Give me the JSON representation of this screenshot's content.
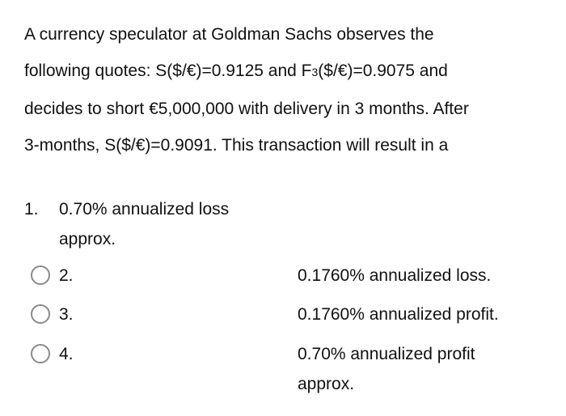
{
  "question": {
    "line1": "A currency speculator at Goldman Sachs observes the",
    "line2_a": "following quotes: S($/€)=0.9125 and F",
    "line2_sub": "3",
    "line2_b": "($/€)=0.9075 and",
    "line3": "decides to short €5,000,000 with delivery in 3 months. After",
    "line4": "3-months, S($/€)=0.9091. This transaction will result in a"
  },
  "options": [
    {
      "number": "1.",
      "line1": "0.70% annualized loss",
      "line2": "approx."
    },
    {
      "number": "2.",
      "text": "0.1760% annualized loss."
    },
    {
      "number": "3.",
      "text": "0.1760% annualized profit."
    },
    {
      "number": "4.",
      "line1": "0.70% annualized profit",
      "line2": "approx."
    }
  ]
}
